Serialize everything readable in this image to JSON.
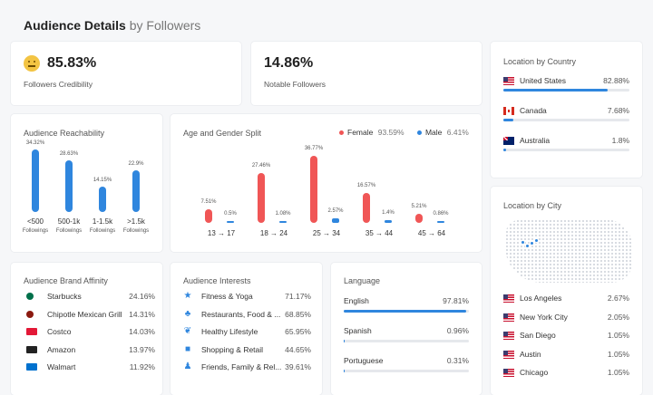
{
  "header": {
    "title": "Audience Details",
    "subtitle": "by Followers"
  },
  "credibility": {
    "value": "85.83%",
    "label": "Followers Credibility",
    "icon": "neutral-face-icon"
  },
  "notable": {
    "value": "14.86%",
    "label": "Notable Followers"
  },
  "country": {
    "title": "Location by Country",
    "items": [
      {
        "name": "United States",
        "value": "82.88%",
        "pct": 82.88,
        "flag": "us"
      },
      {
        "name": "Canada",
        "value": "7.68%",
        "pct": 7.68,
        "flag": "ca"
      },
      {
        "name": "Australia",
        "value": "1.8%",
        "pct": 1.8,
        "flag": "au"
      }
    ]
  },
  "reachability": {
    "title": "Audience Reachability",
    "chart_data": {
      "type": "bar",
      "categories": [
        "<500",
        "500-1k",
        "1-1.5k",
        ">1.5k"
      ],
      "sublabels": [
        "Followings",
        "Followings",
        "Followings",
        "Followings"
      ],
      "values": [
        34.32,
        28.63,
        14.15,
        22.9
      ],
      "labels": [
        "34.32%",
        "28.63%",
        "14.15%",
        "22.9%"
      ]
    }
  },
  "agegender": {
    "title": "Age and Gender Split",
    "legend": {
      "female_label": "Female",
      "female_value": "93.59%",
      "male_label": "Male",
      "male_value": "6.41%"
    },
    "chart_data": {
      "type": "bar",
      "categories": [
        "13 → 17",
        "18 → 24",
        "25 → 34",
        "35 → 44",
        "45 → 64"
      ],
      "series": [
        {
          "name": "Female",
          "values": [
            7.51,
            27.46,
            36.77,
            16.57,
            5.21
          ],
          "labels": [
            "7.51%",
            "27.46%",
            "36.77%",
            "16.57%",
            "5.21%"
          ]
        },
        {
          "name": "Male",
          "values": [
            0.5,
            1.08,
            2.57,
            1.4,
            0.86
          ],
          "labels": [
            "0.5%",
            "1.08%",
            "2.57%",
            "1.4%",
            "0.86%"
          ]
        }
      ]
    }
  },
  "city": {
    "title": "Location by City",
    "items": [
      {
        "name": "Los Angeles",
        "value": "2.67%"
      },
      {
        "name": "New York City",
        "value": "2.05%"
      },
      {
        "name": "San Diego",
        "value": "1.05%"
      },
      {
        "name": "Austin",
        "value": "1.05%"
      },
      {
        "name": "Chicago",
        "value": "1.05%"
      }
    ]
  },
  "brands": {
    "title": "Audience Brand Affinity",
    "items": [
      {
        "name": "Starbucks",
        "value": "24.16%",
        "icon": "starbucks-logo-icon",
        "color": "#00704a"
      },
      {
        "name": "Chipotle Mexican Grill",
        "value": "14.31%",
        "icon": "chipotle-logo-icon",
        "color": "#8b1a10"
      },
      {
        "name": "Costco",
        "value": "14.03%",
        "icon": "costco-logo-icon",
        "color": "#e31837"
      },
      {
        "name": "Amazon",
        "value": "13.97%",
        "icon": "amazon-logo-icon",
        "color": "#222222"
      },
      {
        "name": "Walmart",
        "value": "11.92%",
        "icon": "walmart-logo-icon",
        "color": "#0071ce"
      }
    ]
  },
  "interests": {
    "title": "Audience Interests",
    "items": [
      {
        "name": "Fitness & Yoga",
        "value": "71.17%",
        "icon": "fitness-icon",
        "glyph": "★"
      },
      {
        "name": "Restaurants, Food & ...",
        "value": "68.85%",
        "icon": "utensils-icon",
        "glyph": "♣"
      },
      {
        "name": "Healthy Lifestyle",
        "value": "65.95%",
        "icon": "leaf-icon",
        "glyph": "❦"
      },
      {
        "name": "Shopping & Retail",
        "value": "44.65%",
        "icon": "shopping-bag-icon",
        "glyph": "■"
      },
      {
        "name": "Friends, Family & Rel...",
        "value": "39.61%",
        "icon": "people-icon",
        "glyph": "♟"
      }
    ]
  },
  "language": {
    "title": "Language",
    "items": [
      {
        "name": "English",
        "value": "97.81%",
        "pct": 97.81
      },
      {
        "name": "Spanish",
        "value": "0.96%",
        "pct": 0.96
      },
      {
        "name": "Portuguese",
        "value": "0.31%",
        "pct": 0.31
      }
    ]
  }
}
